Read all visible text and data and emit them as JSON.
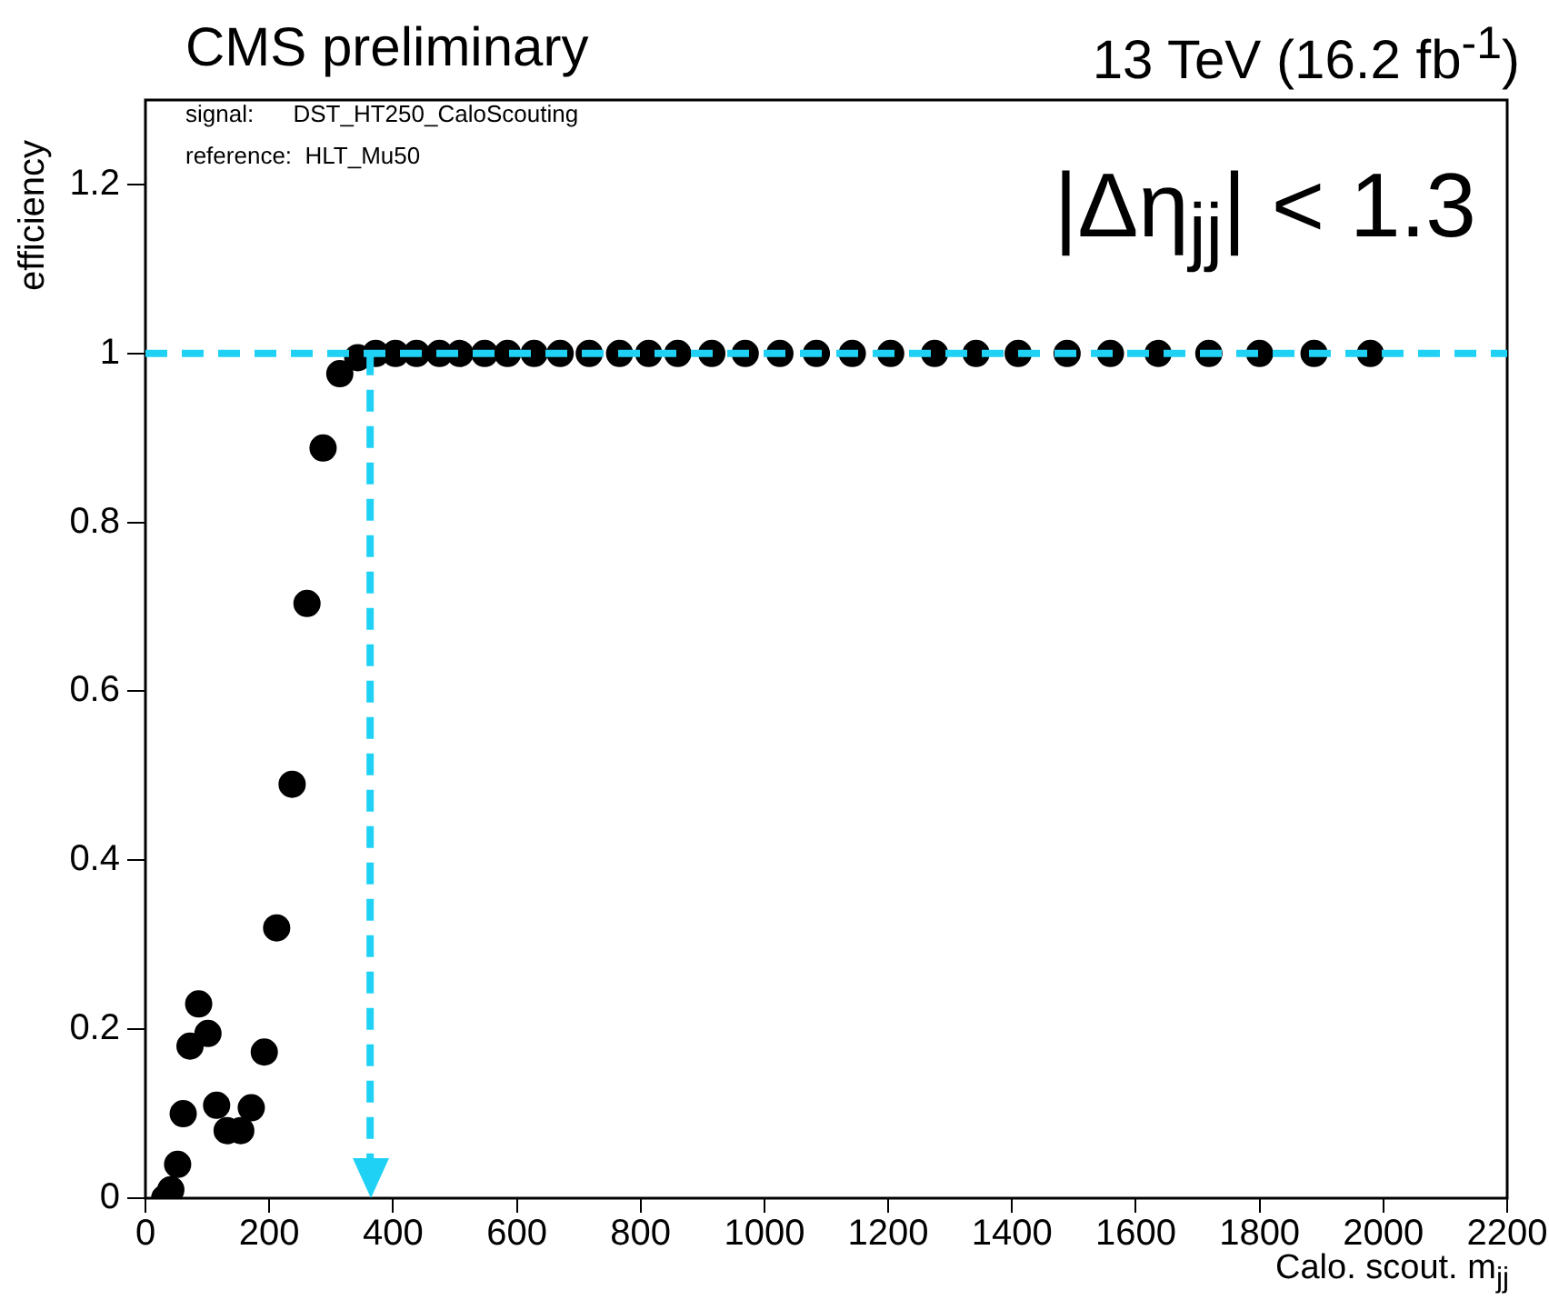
{
  "chart_data": {
    "type": "scatter",
    "title": "CMS preliminary",
    "subtitle": "13 TeV (16.2 fb$^{-1}$)",
    "xlabel": "Calo. scout. m$_{jj}$",
    "ylabel": "efficiency",
    "annotations": [
      "signal:      DST_HT250_CaloScouting",
      "reference:  HLT_Mu50",
      "|Δη$_{jj}$| < 1.3"
    ],
    "x": [
      31,
      41,
      52,
      61,
      72,
      86,
      101,
      115,
      132,
      154,
      171,
      192,
      212,
      237,
      261,
      287,
      314,
      343,
      372,
      404,
      438,
      475,
      508,
      548,
      585,
      628,
      670,
      717,
      766,
      813,
      860,
      915,
      969,
      1025,
      1084,
      1142,
      1204,
      1275,
      1342,
      1410,
      1489,
      1559,
      1636,
      1718,
      1800,
      1888,
      1979
    ],
    "values": [
      0.0,
      0.01,
      0.04,
      0.1,
      0.18,
      0.23,
      0.195,
      0.11,
      0.08,
      0.08,
      0.107,
      0.173,
      0.32,
      0.49,
      0.704,
      0.888,
      0.976,
      0.995,
      1,
      1,
      1,
      1,
      1,
      1,
      1,
      1,
      1,
      1,
      1,
      1,
      1,
      1,
      1,
      1,
      1,
      1,
      1,
      1,
      1,
      1,
      1,
      1,
      1,
      1,
      1,
      1,
      1
    ],
    "color": "#000000",
    "marker": "circle",
    "xlim": [
      0,
      2200
    ],
    "xticks": [
      0,
      200,
      400,
      600,
      800,
      1000,
      1200,
      1400,
      1600,
      1800,
      2000,
      2200
    ],
    "ylim": [
      0,
      1.3
    ],
    "yticks": [
      0,
      0.2,
      0.4,
      0.6,
      0.8,
      1,
      1.2
    ],
    "ref_lines": [
      {
        "axis": "y",
        "value": 1,
        "color": "#1fd2f5",
        "line_style": "dashed"
      },
      {
        "axis": "x",
        "value": 363,
        "color": "#1fd2f5",
        "line_style": "dashed"
      }
    ]
  }
}
